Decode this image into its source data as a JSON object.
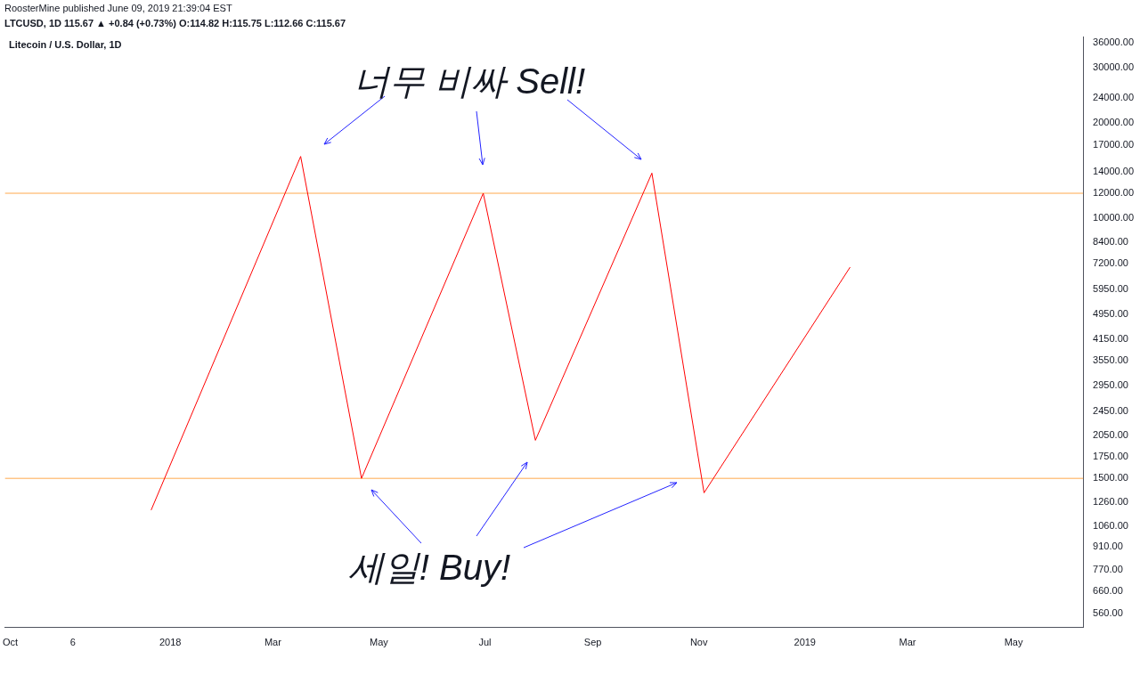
{
  "chart_data": {
    "type": "line",
    "title": "Litecoin / U.S. Dollar, 1D",
    "annotations": [
      "RoosterMine published June 09, 2019 21:39:04 EST",
      "LTCUSD, 1D 115.67 ▲ +0.84 (+0.73%) O:114.82 H:115.75 L:112.66 C:115.67",
      "너무 비싸 Sell!",
      "세일! Buy!"
    ],
    "x": [
      "2017-12-21",
      "2018-03-17",
      "2018-04-21",
      "2018-06-30",
      "2018-07-30",
      "2018-10-05",
      "2018-11-04",
      "2019-01-27"
    ],
    "series": [
      {
        "color": "#ff0000",
        "values": [
          1190,
          15700,
          1500,
          12000,
          1980,
          13900,
          1350,
          7000
        ]
      }
    ],
    "log": "y",
    "grid": false,
    "legend": false,
    "marker": "none",
    "line_style": "solid",
    "xlim": [
      "2017-09-28",
      "2019-06-10"
    ],
    "xticks": [
      {
        "value": "2017-10-01",
        "label": "Oct"
      },
      {
        "value": "2017-11-06",
        "label": "6"
      },
      {
        "value": "2018-01-01",
        "label": "2018"
      },
      {
        "value": "2018-03-01",
        "label": "Mar"
      },
      {
        "value": "2018-05-01",
        "label": "May"
      },
      {
        "value": "2018-07-01",
        "label": "Jul"
      },
      {
        "value": "2018-09-01",
        "label": "Sep"
      },
      {
        "value": "2018-11-01",
        "label": "Nov"
      },
      {
        "value": "2019-01-01",
        "label": "2019"
      },
      {
        "value": "2019-03-01",
        "label": "Mar"
      },
      {
        "value": "2019-05-01",
        "label": "May"
      }
    ],
    "ylim": [
      505,
      37500
    ],
    "yticks": [
      {
        "value": 560,
        "label": "560.00"
      },
      {
        "value": 660,
        "label": "660.00"
      },
      {
        "value": 770,
        "label": "770.00"
      },
      {
        "value": 910,
        "label": "910.00"
      },
      {
        "value": 1060,
        "label": "1060.00"
      },
      {
        "value": 1260,
        "label": "1260.00"
      },
      {
        "value": 1500,
        "label": "1500.00"
      },
      {
        "value": 1750,
        "label": "1750.00"
      },
      {
        "value": 2050,
        "label": "2050.00"
      },
      {
        "value": 2450,
        "label": "2450.00"
      },
      {
        "value": 2950,
        "label": "2950.00"
      },
      {
        "value": 3550,
        "label": "3550.00"
      },
      {
        "value": 4150,
        "label": "4150.00"
      },
      {
        "value": 4950,
        "label": "4950.00"
      },
      {
        "value": 5950,
        "label": "5950.00"
      },
      {
        "value": 7200,
        "label": "7200.00"
      },
      {
        "value": 8400,
        "label": "8400.00"
      },
      {
        "value": 10000,
        "label": "10000.00"
      },
      {
        "value": 12000,
        "label": "12000.00"
      },
      {
        "value": 14000,
        "label": "14000.00"
      },
      {
        "value": 17000,
        "label": "17000.00"
      },
      {
        "value": 20000,
        "label": "20000.00"
      },
      {
        "value": 24000,
        "label": "24000.00"
      },
      {
        "value": 30000,
        "label": "30000.00"
      },
      {
        "value": 36000,
        "label": "36000.00"
      }
    ],
    "ref_lines": [
      {
        "axis": "y",
        "value": 12000,
        "color": "#ffa94d"
      },
      {
        "axis": "y",
        "value": 1500,
        "color": "#ffa94d"
      }
    ]
  }
}
